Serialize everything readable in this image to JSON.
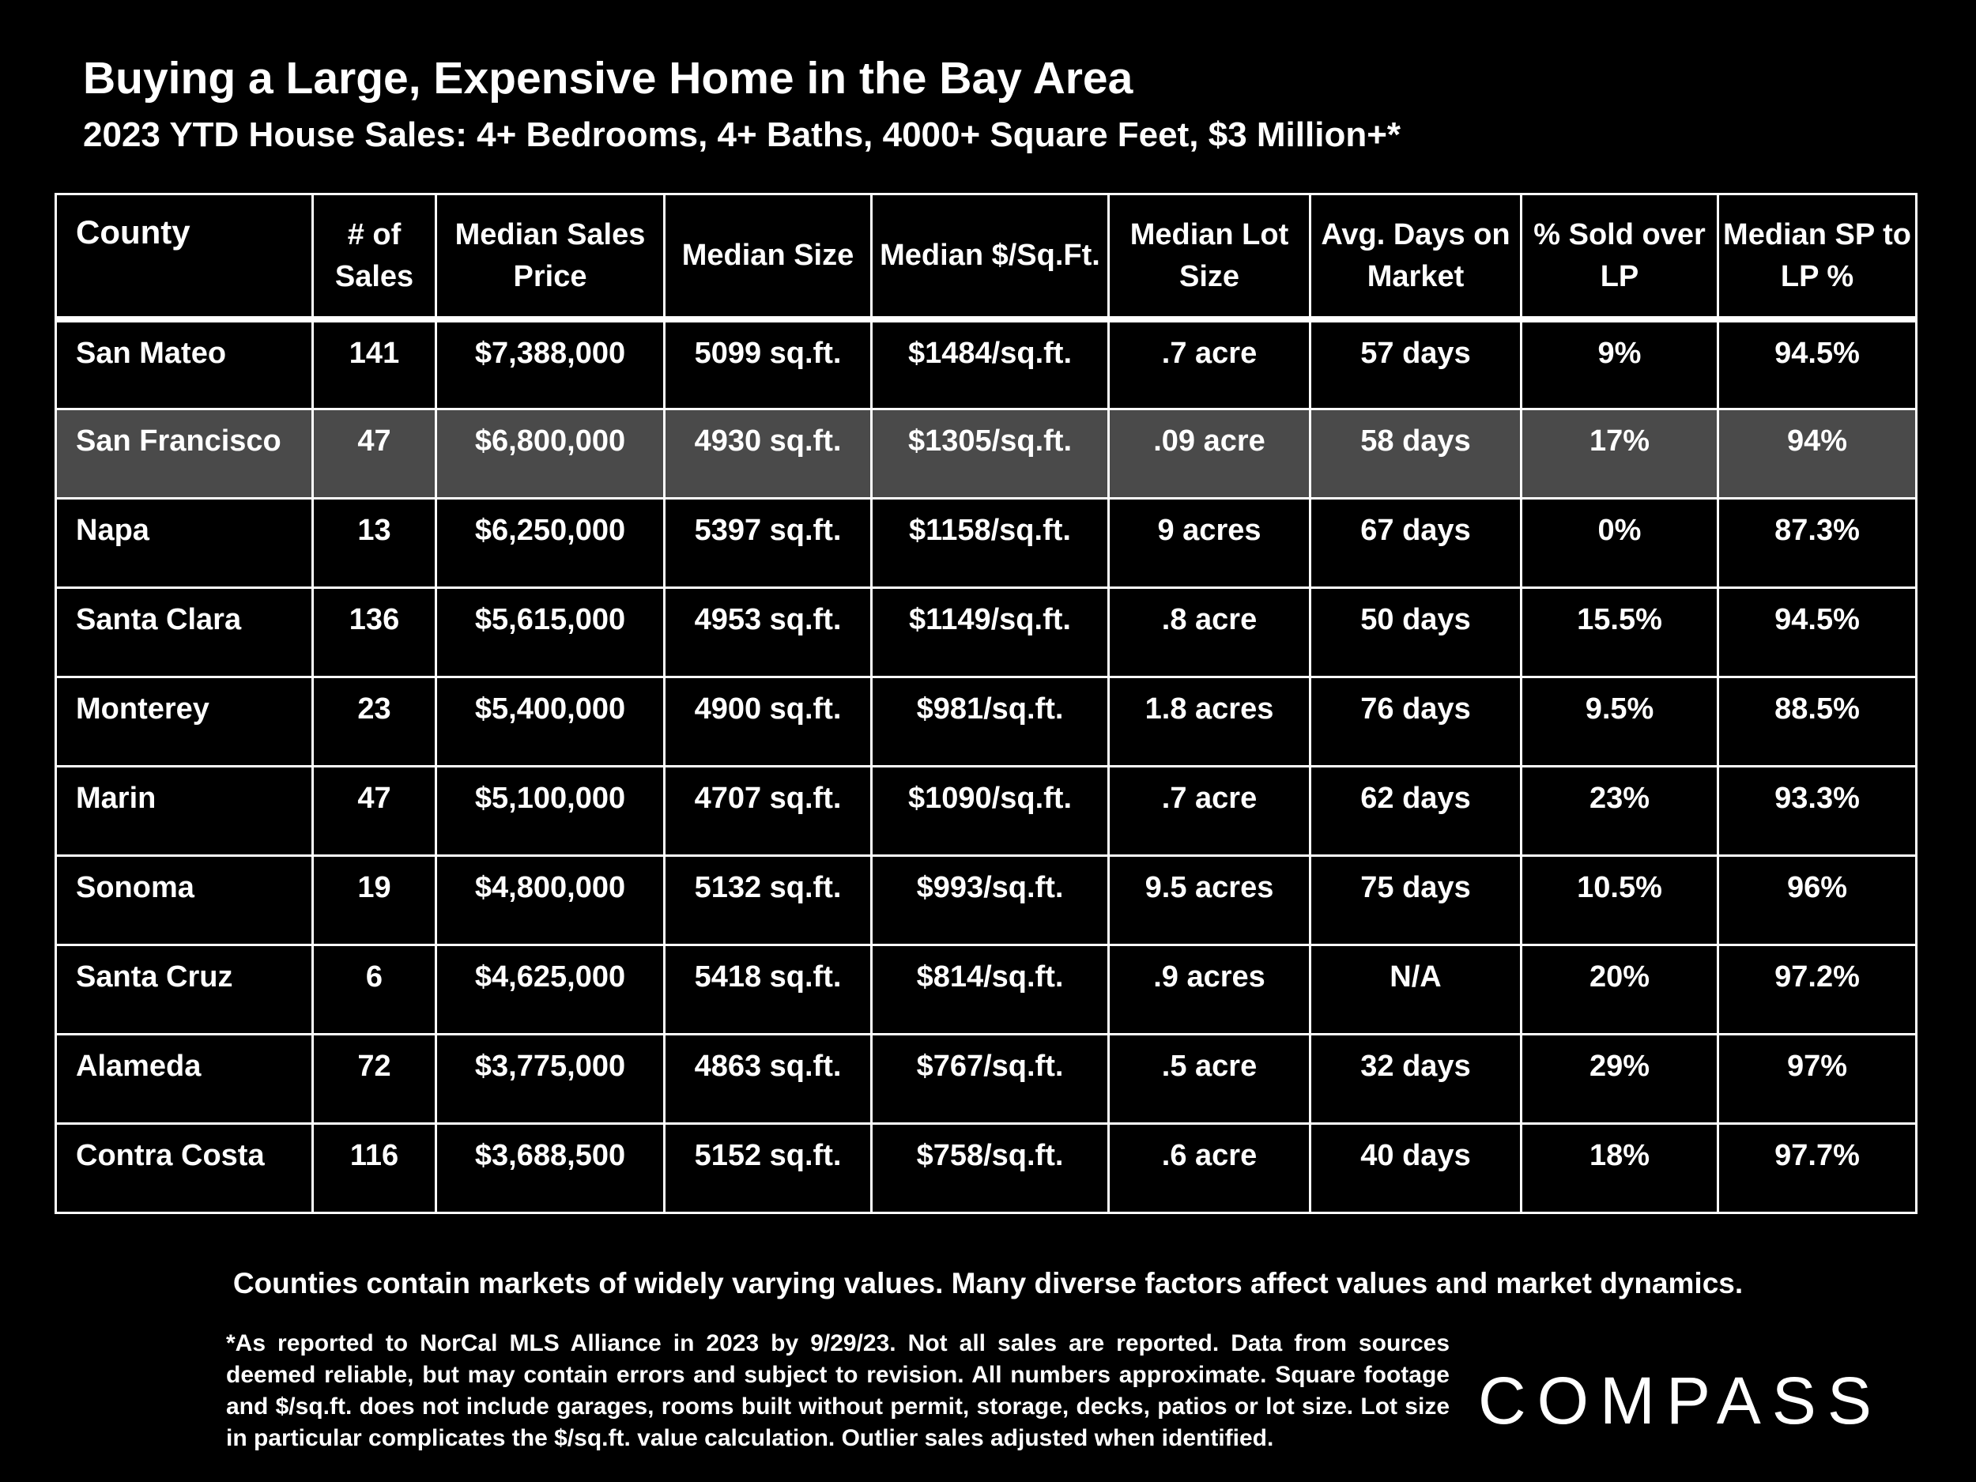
{
  "title": "Buying a Large, Expensive Home in the Bay Area",
  "subtitle": "2023 YTD House Sales:  4+ Bedrooms, 4+ Baths, 4000+ Square Feet, $3 Million+*",
  "table": {
    "headers": [
      "County",
      "# of Sales",
      "Median Sales Price",
      "Median Size",
      "Median $/Sq.Ft.",
      "Median Lot Size",
      "Avg. Days on Market",
      "% Sold over LP",
      "Median SP to LP %"
    ],
    "rows": [
      [
        "San Mateo",
        "141",
        "$7,388,000",
        "5099 sq.ft.",
        "$1484/sq.ft.",
        ".7 acre",
        "57 days",
        "9%",
        "94.5%"
      ],
      [
        "San Francisco",
        "47",
        "$6,800,000",
        "4930 sq.ft.",
        "$1305/sq.ft.",
        ".09 acre",
        "58 days",
        "17%",
        "94%"
      ],
      [
        "Napa",
        "13",
        "$6,250,000",
        "5397 sq.ft.",
        "$1158/sq.ft.",
        "9 acres",
        "67 days",
        "0%",
        "87.3%"
      ],
      [
        "Santa Clara",
        "136",
        "$5,615,000",
        "4953 sq.ft.",
        "$1149/sq.ft.",
        ".8 acre",
        "50 days",
        "15.5%",
        "94.5%"
      ],
      [
        "Monterey",
        "23",
        "$5,400,000",
        "4900 sq.ft.",
        "$981/sq.ft.",
        "1.8 acres",
        "76 days",
        "9.5%",
        "88.5%"
      ],
      [
        "Marin",
        "47",
        "$5,100,000",
        "4707 sq.ft.",
        "$1090/sq.ft.",
        ".7 acre",
        "62 days",
        "23%",
        "93.3%"
      ],
      [
        "Sonoma",
        "19",
        "$4,800,000",
        "5132 sq.ft.",
        "$993/sq.ft.",
        "9.5 acres",
        "75 days",
        "10.5%",
        "96%"
      ],
      [
        "Santa Cruz",
        "6",
        "$4,625,000",
        "5418 sq.ft.",
        "$814/sq.ft.",
        ".9 acres",
        "N/A",
        "20%",
        "97.2%"
      ],
      [
        "Alameda",
        "72",
        "$3,775,000",
        "4863 sq.ft.",
        "$767/sq.ft.",
        ".5 acre",
        "32 days",
        "29%",
        "97%"
      ],
      [
        "Contra Costa",
        "116",
        "$3,688,500",
        "5152 sq.ft.",
        "$758/sq.ft.",
        ".6 acre",
        "40 days",
        "18%",
        "97.7%"
      ]
    ],
    "highlight_row_color": "#4a4a4a"
  },
  "note": "Counties contain markets of widely varying values. Many diverse factors affect values and market dynamics.",
  "footnote": "*As reported to NorCal MLS Alliance in 2023 by 9/29/23. Not all sales are reported. Data from sources deemed reliable, but may contain errors and subject to revision. All numbers approximate. Square footage and $/sq.ft. does not include garages, rooms built without permit, storage, decks, patios or lot size. Lot size in particular complicates the $/sq.ft. value calculation. Outlier sales adjusted when identified.",
  "logo": "COMPASS"
}
